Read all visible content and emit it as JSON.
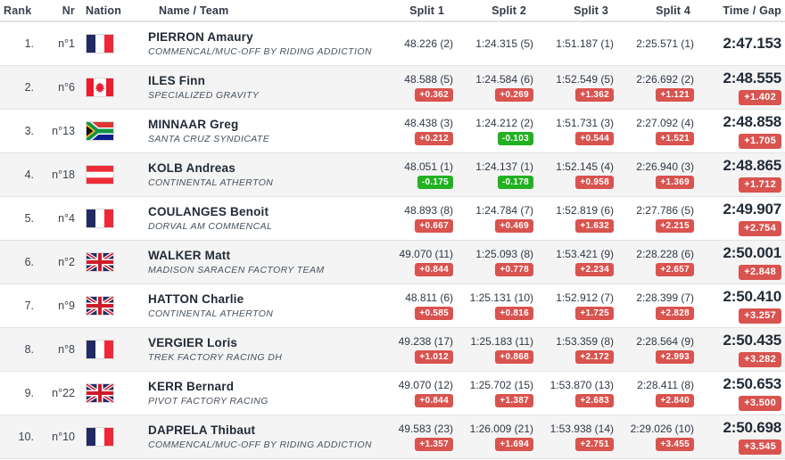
{
  "header": {
    "rank": "Rank",
    "nr": "Nr",
    "nation": "Nation",
    "name_team": "Name / Team",
    "split1": "Split 1",
    "split2": "Split 2",
    "split3": "Split 3",
    "split4": "Split 4",
    "time_gap": "Time / Gap"
  },
  "colors": {
    "gap_positive_badge": "#d9534f",
    "gap_negative_badge": "#21b121",
    "row_alt_background": "#f4f4f4",
    "text_dark": "#222b36"
  },
  "rows": [
    {
      "rank": "1.",
      "nr": "n°1",
      "nation": "fr",
      "name": "PIERRON Amaury",
      "team": "COMMENCAL/MUC-OFF BY RIDING ADDICTION",
      "splits": [
        "48.226 (2)",
        "1:24.315 (5)",
        "1:51.187 (1)",
        "2:25.571 (1)"
      ],
      "gaps": [
        null,
        null,
        null,
        null
      ],
      "total": "2:47.153",
      "total_gap": null
    },
    {
      "rank": "2.",
      "nr": "n°6",
      "nation": "ca",
      "name": "ILES Finn",
      "team": "SPECIALIZED GRAVITY",
      "splits": [
        "48.588 (5)",
        "1:24.584 (6)",
        "1:52.549 (5)",
        "2:26.692 (2)"
      ],
      "gaps": [
        "+0.362",
        "+0.269",
        "+1.362",
        "+1.121"
      ],
      "total": "2:48.555",
      "total_gap": "+1.402"
    },
    {
      "rank": "3.",
      "nr": "n°13",
      "nation": "za",
      "name": "MINNAAR Greg",
      "team": "SANTA CRUZ SYNDICATE",
      "splits": [
        "48.438 (3)",
        "1:24.212 (2)",
        "1:51.731 (3)",
        "2:27.092 (4)"
      ],
      "gaps": [
        "+0.212",
        "-0.103",
        "+0.544",
        "+1.521"
      ],
      "total": "2:48.858",
      "total_gap": "+1.705"
    },
    {
      "rank": "4.",
      "nr": "n°18",
      "nation": "at",
      "name": "KOLB Andreas",
      "team": "CONTINENTAL ATHERTON",
      "splits": [
        "48.051 (1)",
        "1:24.137 (1)",
        "1:52.145 (4)",
        "2:26.940 (3)"
      ],
      "gaps": [
        "-0.175",
        "-0.178",
        "+0.958",
        "+1.369"
      ],
      "total": "2:48.865",
      "total_gap": "+1.712"
    },
    {
      "rank": "5.",
      "nr": "n°4",
      "nation": "fr",
      "name": "COULANGES Benoit",
      "team": "DORVAL AM COMMENCAL",
      "splits": [
        "48.893 (8)",
        "1:24.784 (7)",
        "1:52.819 (6)",
        "2:27.786 (5)"
      ],
      "gaps": [
        "+0.667",
        "+0.469",
        "+1.632",
        "+2.215"
      ],
      "total": "2:49.907",
      "total_gap": "+2.754"
    },
    {
      "rank": "6.",
      "nr": "n°2",
      "nation": "gb",
      "name": "WALKER Matt",
      "team": "MADISON SARACEN FACTORY TEAM",
      "splits": [
        "49.070 (11)",
        "1:25.093 (8)",
        "1:53.421 (9)",
        "2:28.228 (6)"
      ],
      "gaps": [
        "+0.844",
        "+0.778",
        "+2.234",
        "+2.657"
      ],
      "total": "2:50.001",
      "total_gap": "+2.848"
    },
    {
      "rank": "7.",
      "nr": "n°9",
      "nation": "gb",
      "name": "HATTON Charlie",
      "team": "CONTINENTAL ATHERTON",
      "splits": [
        "48.811 (6)",
        "1:25.131 (10)",
        "1:52.912 (7)",
        "2:28.399 (7)"
      ],
      "gaps": [
        "+0.585",
        "+0.816",
        "+1.725",
        "+2.828"
      ],
      "total": "2:50.410",
      "total_gap": "+3.257"
    },
    {
      "rank": "8.",
      "nr": "n°8",
      "nation": "fr",
      "name": "VERGIER Loris",
      "team": "TREK FACTORY RACING DH",
      "splits": [
        "49.238 (17)",
        "1:25.183 (11)",
        "1:53.359 (8)",
        "2:28.564 (9)"
      ],
      "gaps": [
        "+1.012",
        "+0.868",
        "+2.172",
        "+2.993"
      ],
      "total": "2:50.435",
      "total_gap": "+3.282"
    },
    {
      "rank": "9.",
      "nr": "n°22",
      "nation": "gb",
      "name": "KERR Bernard",
      "team": "PIVOT FACTORY RACING",
      "splits": [
        "49.070 (12)",
        "1:25.702 (15)",
        "1:53.870 (13)",
        "2:28.411 (8)"
      ],
      "gaps": [
        "+0.844",
        "+1.387",
        "+2.683",
        "+2.840"
      ],
      "total": "2:50.653",
      "total_gap": "+3.500"
    },
    {
      "rank": "10.",
      "nr": "n°10",
      "nation": "fr",
      "name": "DAPRELA Thibaut",
      "team": "COMMENCAL/MUC-OFF BY RIDING ADDICTION",
      "splits": [
        "49.583 (23)",
        "1:26.009 (21)",
        "1:53.938 (14)",
        "2:29.026 (10)"
      ],
      "gaps": [
        "+1.357",
        "+1.694",
        "+2.751",
        "+3.455"
      ],
      "total": "2:50.698",
      "total_gap": "+3.545"
    }
  ]
}
